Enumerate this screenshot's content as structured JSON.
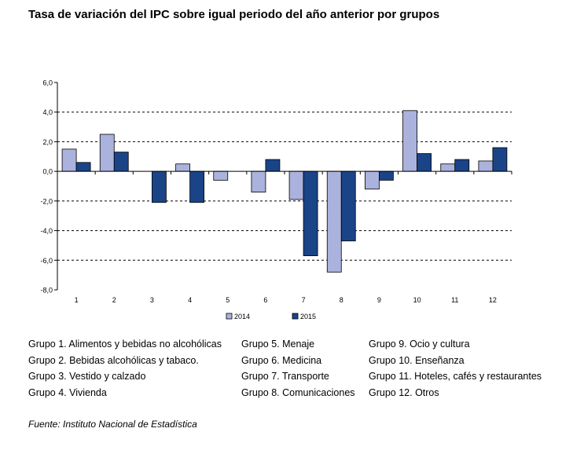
{
  "title": "Tasa de variación del IPC sobre igual periodo del año anterior por grupos",
  "chart_data": {
    "type": "bar",
    "title": "Tasa de variación del IPC sobre igual periodo del año anterior por grupos",
    "categories": [
      "1",
      "2",
      "3",
      "4",
      "5",
      "6",
      "7",
      "8",
      "9",
      "10",
      "11",
      "12"
    ],
    "series": [
      {
        "name": "2014",
        "values": [
          1.5,
          2.5,
          0.0,
          0.5,
          -0.6,
          -1.4,
          -1.9,
          -6.8,
          -1.2,
          4.1,
          0.5,
          0.7
        ],
        "color": "#b7bfe4"
      },
      {
        "name": "2015",
        "values": [
          0.6,
          1.3,
          -2.1,
          -2.1,
          0.0,
          0.8,
          -5.7,
          -4.7,
          -0.6,
          1.2,
          0.8,
          1.6
        ],
        "color": "#1f4e96"
      }
    ],
    "y_ticks": [
      "6,0",
      "4,0",
      "2,0",
      "0,0",
      "-2,0",
      "-4,0",
      "-6,0",
      "-8,0"
    ],
    "ylim": [
      -8,
      6
    ],
    "xlabel": "",
    "ylabel": "",
    "grid": "dashed horizontal",
    "legend_position": "bottom"
  },
  "groups": [
    [
      "Grupo 1. Alimentos y bebidas no alcohólicas",
      "Grupo 2. Bebidas alcohólicas y  tabaco.",
      "Grupo 3. Vestido y calzado",
      "Grupo 4. Vivienda"
    ],
    [
      "Grupo 5. Menaje",
      "Grupo 6. Medicina",
      "Grupo 7. Transporte",
      "Grupo 8. Comunicaciones"
    ],
    [
      "Grupo 9. Ocio y cultura",
      "Grupo 10. Enseñanza",
      "Grupo 11. Hoteles, cafés y restaurantes",
      "Grupo 12. Otros"
    ]
  ],
  "source": "Fuente: Instituto Nacional de Estadística"
}
